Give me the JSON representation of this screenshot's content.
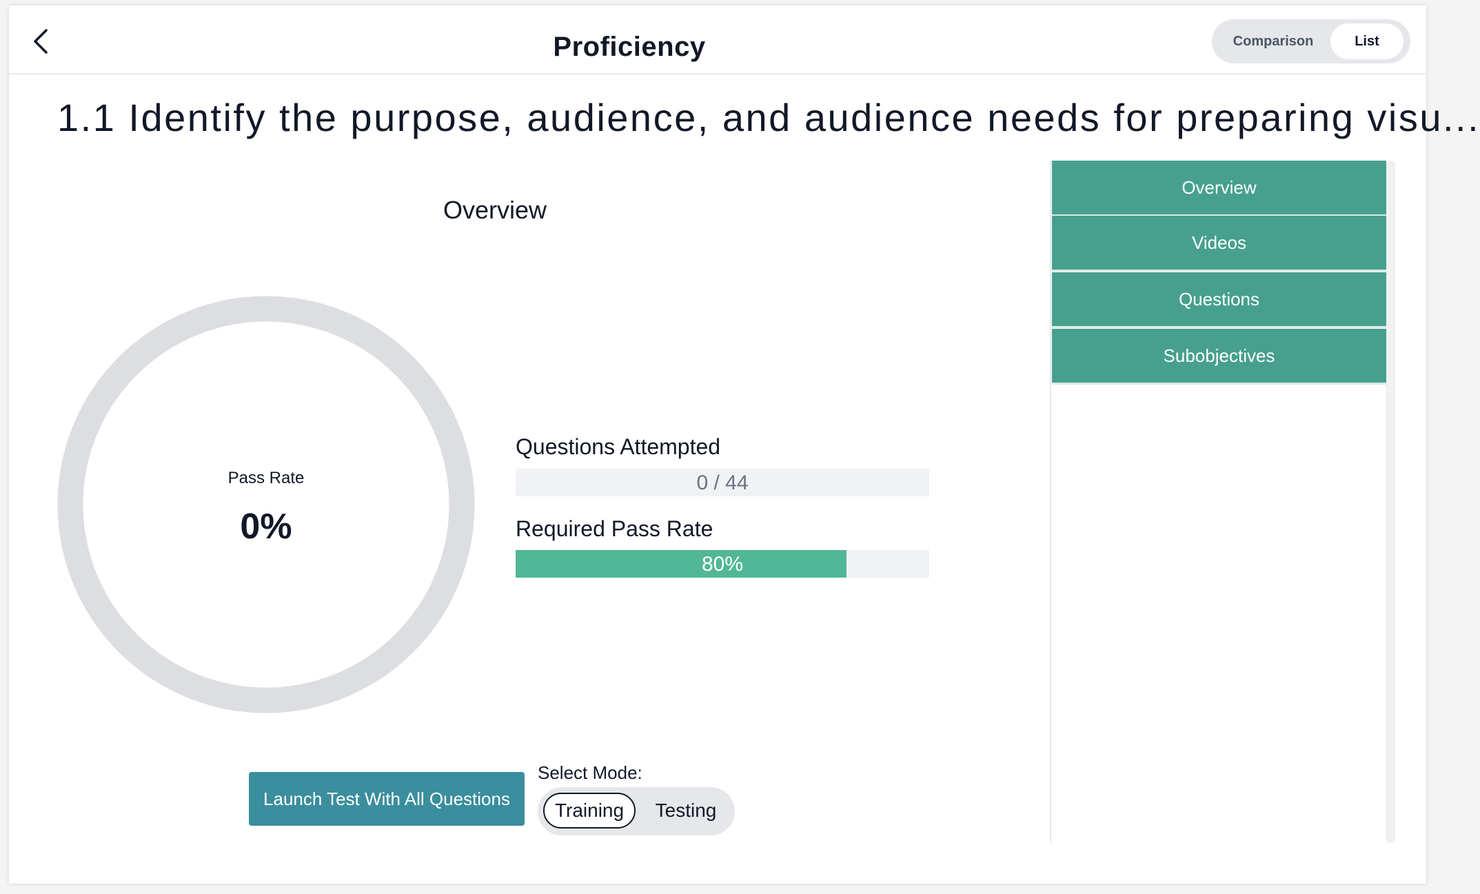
{
  "header": {
    "back_icon": "chevron-left-icon",
    "title": "Proficiency",
    "view_toggle": {
      "options": [
        "Comparison",
        "List"
      ],
      "selected": "List"
    }
  },
  "objective": {
    "title": "1.1 Identify the purpose, audience, and audience needs for preparing visu..."
  },
  "overview": {
    "heading": "Overview",
    "pass_rate_label": "Pass Rate",
    "pass_rate_value": "0%",
    "pass_rate_fraction": 0,
    "questions_attempted_label": "Questions Attempted",
    "questions_attempted_value": "0 / 44",
    "questions_attempted_fraction": 0,
    "required_pass_rate_label": "Required Pass Rate",
    "required_pass_rate_value": "80%",
    "required_pass_rate_fraction": 0.8
  },
  "actions": {
    "launch_label": "Launch Test With All Questions",
    "mode_label": "Select Mode:",
    "modes": [
      "Training",
      "Testing"
    ],
    "selected_mode": "Training"
  },
  "side_nav": {
    "items": [
      "Overview",
      "Videos",
      "Questions",
      "Subobjectives"
    ]
  },
  "colors": {
    "accent_teal": "#46a08d",
    "progress_green": "#52b796",
    "launch_button": "#3a8e9d",
    "donut_track": "#dcdee2"
  }
}
